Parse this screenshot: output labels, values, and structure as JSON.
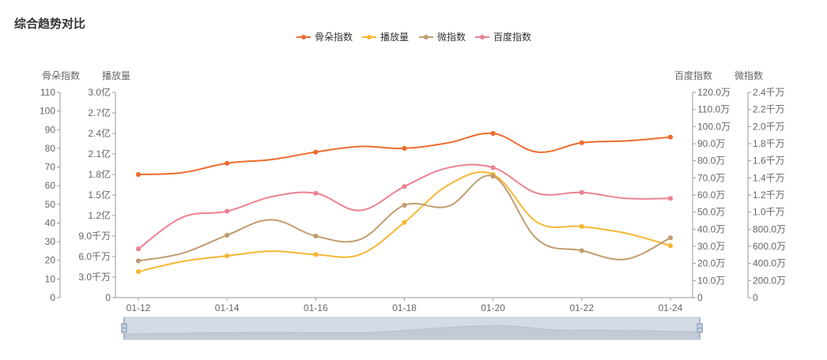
{
  "chart_data": {
    "type": "line",
    "title": "综合趋势对比",
    "categories": [
      "01-12",
      "01-13",
      "01-14",
      "01-15",
      "01-16",
      "01-17",
      "01-18",
      "01-19",
      "01-20",
      "01-21",
      "01-22",
      "01-23",
      "01-24"
    ],
    "x_tick_labels": [
      "01-12",
      "01-14",
      "01-16",
      "01-18",
      "01-20",
      "01-22",
      "01-24"
    ],
    "legend_position": "top-center",
    "grid": false,
    "axes": [
      {
        "id": "gudo",
        "name": "骨朵指数",
        "side": "left",
        "min": 0,
        "max": 110,
        "ticks": [
          "0",
          "10",
          "20",
          "30",
          "40",
          "50",
          "60",
          "70",
          "80",
          "90",
          "100",
          "110"
        ]
      },
      {
        "id": "play",
        "name": "播放量",
        "side": "left",
        "min": 0,
        "max": 300000000,
        "ticks": [
          "0",
          "3.0千万",
          "6.0千万",
          "9.0千万",
          "1.2亿",
          "1.5亿",
          "1.8亿",
          "2.1亿",
          "2.4亿",
          "2.7亿",
          "3.0亿"
        ]
      },
      {
        "id": "baidu",
        "name": "百度指数",
        "side": "right",
        "min": 0,
        "max": 1200000,
        "ticks": [
          "0",
          "10.0万",
          "20.0万",
          "30.0万",
          "40.0万",
          "50.0万",
          "60.0万",
          "70.0万",
          "80.0万",
          "90.0万",
          "100.0万",
          "110.0万",
          "120.0万"
        ]
      },
      {
        "id": "weibo",
        "name": "微指数",
        "side": "right",
        "min": 0,
        "max": 24000000,
        "ticks": [
          "0",
          "200.0万",
          "400.0万",
          "600.0万",
          "800.0万",
          "1.0千万",
          "1.2千万",
          "1.4千万",
          "1.6千万",
          "1.8千万",
          "2.0千万",
          "2.2千万",
          "2.4千万"
        ]
      }
    ],
    "series": [
      {
        "name": "骨朵指数",
        "axis": "gudo",
        "color": "#ee6c2f",
        "values": [
          66,
          67,
          72,
          74,
          78,
          81,
          80,
          83,
          88,
          78,
          83,
          84,
          86
        ]
      },
      {
        "name": "播放量",
        "axis": "play",
        "color": "#f7b733",
        "values": [
          38000000,
          53000000,
          61000000,
          68000000,
          63000000,
          63000000,
          110000000,
          165000000,
          180000000,
          110000000,
          104000000,
          94000000,
          76000000
        ]
      },
      {
        "name": "微指数",
        "axis": "weibo",
        "color": "#c19c6f",
        "values": [
          4300000,
          5200000,
          7300000,
          9100000,
          7200000,
          6800000,
          10800000,
          10700000,
          14200000,
          6800000,
          5500000,
          4500000,
          7000000
        ]
      },
      {
        "name": "百度指数",
        "axis": "baidu",
        "color": "#ec8191",
        "values": [
          285000,
          470000,
          505000,
          590000,
          610000,
          510000,
          650000,
          760000,
          760000,
          610000,
          615000,
          580000,
          580000
        ]
      }
    ]
  }
}
